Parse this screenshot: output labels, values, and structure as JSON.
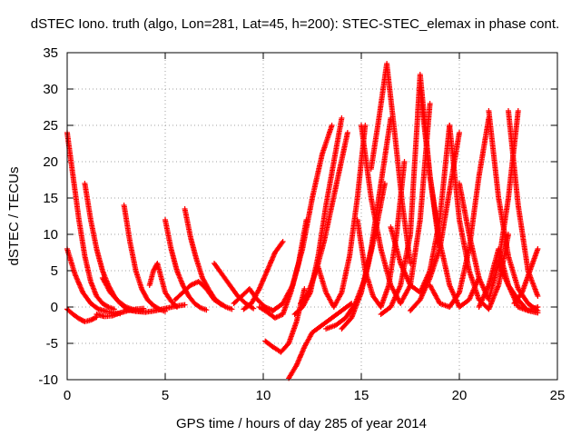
{
  "chart_data": {
    "type": "scatter",
    "title": "dSTEC Iono. truth (algo, Lon=281, Lat=45, h=200): STEC-STEC_elemax in phase cont.",
    "xlabel": "GPS time / hours of day 285 of year 2014",
    "ylabel": "dSTEC  / TECUs",
    "xlim": [
      0,
      25
    ],
    "ylim": [
      -10,
      35
    ],
    "xticks": [
      0,
      5,
      10,
      15,
      20,
      25
    ],
    "yticks": [
      -10,
      -5,
      0,
      5,
      10,
      15,
      20,
      25,
      30,
      35
    ],
    "xtick_labels": [
      "0",
      "5",
      "10",
      "15",
      "20",
      "25"
    ],
    "ytick_labels": [
      "-10",
      "-5",
      "0",
      "5",
      "10",
      "15",
      "20",
      "25",
      "30",
      "35"
    ],
    "grid": true,
    "marker": "plus",
    "color": "#ff0000",
    "series": [
      {
        "x": [
          0.0,
          0.3,
          0.6,
          0.9,
          1.2,
          1.5,
          1.8,
          2.1,
          2.4
        ],
        "y": [
          24.0,
          18.0,
          12.0,
          7.0,
          3.5,
          1.5,
          0.5,
          0.0,
          -0.3
        ]
      },
      {
        "x": [
          0.0,
          0.4,
          0.8,
          1.2,
          1.6,
          2.0,
          2.4,
          2.7
        ],
        "y": [
          8.0,
          4.5,
          2.0,
          0.5,
          -0.3,
          -0.6,
          -0.8,
          -0.9
        ]
      },
      {
        "x": [
          0.0,
          0.3,
          0.6,
          0.9,
          1.2,
          1.5
        ],
        "y": [
          -0.3,
          -1.0,
          -1.6,
          -2.0,
          -1.8,
          -1.4
        ]
      },
      {
        "x": [
          0.9,
          1.2,
          1.5,
          1.8,
          2.1,
          2.4,
          2.7,
          3.0,
          3.3
        ],
        "y": [
          17.0,
          12.0,
          8.0,
          5.0,
          3.0,
          1.5,
          0.5,
          -0.2,
          -0.5
        ]
      },
      {
        "x": [
          1.5,
          1.9,
          2.3,
          2.7,
          3.1,
          3.5,
          3.9
        ],
        "y": [
          -1.0,
          -1.3,
          -1.2,
          -0.8,
          -0.5,
          -0.3,
          -0.2
        ]
      },
      {
        "x": [
          2.9,
          3.2,
          3.5,
          3.8,
          4.1,
          4.4,
          4.7,
          5.0
        ],
        "y": [
          14.0,
          9.0,
          5.0,
          2.5,
          1.0,
          0.2,
          -0.3,
          -0.6
        ]
      },
      {
        "x": [
          1.8,
          2.2,
          2.6,
          3.0,
          3.4,
          3.8
        ],
        "y": [
          4.0,
          2.0,
          0.8,
          0.0,
          -0.4,
          -0.6
        ]
      },
      {
        "x": [
          3.0,
          3.5,
          4.0,
          4.5,
          5.0,
          5.5,
          6.0
        ],
        "y": [
          -0.3,
          -0.6,
          -0.7,
          -0.5,
          -0.2,
          0.1,
          0.3
        ]
      },
      {
        "x": [
          4.2,
          4.4,
          4.6,
          4.8,
          5.0,
          5.3,
          5.6
        ],
        "y": [
          3.0,
          5.0,
          6.0,
          4.0,
          2.0,
          0.8,
          0.0
        ]
      },
      {
        "x": [
          5.0,
          5.3,
          5.6,
          5.9,
          6.2,
          6.5,
          6.8,
          7.1
        ],
        "y": [
          12.0,
          8.0,
          5.0,
          3.0,
          1.5,
          0.5,
          -0.1,
          -0.4
        ]
      },
      {
        "x": [
          6.0,
          6.3,
          6.6,
          6.9,
          7.2,
          7.5,
          7.8,
          8.1,
          8.4
        ],
        "y": [
          13.5,
          9.5,
          6.5,
          4.0,
          2.5,
          1.2,
          0.5,
          0.0,
          -0.3
        ]
      },
      {
        "x": [
          5.5,
          5.9,
          6.3,
          6.7,
          7.1,
          7.5,
          7.9
        ],
        "y": [
          1.0,
          2.0,
          3.0,
          3.5,
          2.5,
          1.0,
          0.3
        ]
      },
      {
        "x": [
          7.5,
          7.9,
          8.3,
          8.7,
          9.1,
          9.5
        ],
        "y": [
          6.0,
          4.5,
          3.0,
          1.5,
          0.5,
          -0.2
        ]
      },
      {
        "x": [
          8.5,
          8.9,
          9.3,
          9.7,
          10.1,
          10.5
        ],
        "y": [
          0.5,
          1.5,
          2.5,
          1.0,
          0.0,
          -0.5
        ]
      },
      {
        "x": [
          9.0,
          9.4,
          9.8,
          10.2,
          10.6,
          11.0
        ],
        "y": [
          -0.3,
          0.5,
          2.5,
          5.0,
          7.5,
          9.0
        ]
      },
      {
        "x": [
          9.8,
          10.2,
          10.6,
          11.0,
          11.4,
          11.8,
          12.2
        ],
        "y": [
          0.0,
          -0.7,
          -1.5,
          -1.0,
          2.0,
          6.0,
          12.0
        ]
      },
      {
        "x": [
          10.1,
          10.5,
          10.9,
          11.3,
          11.7,
          12.1
        ],
        "y": [
          -4.7,
          -5.5,
          -6.2,
          -5.0,
          -2.0,
          2.5
        ]
      },
      {
        "x": [
          11.3,
          11.7,
          12.1,
          12.5,
          13.0,
          13.5,
          14.0,
          14.5
        ],
        "y": [
          -9.8,
          -8.0,
          -5.5,
          -3.5,
          -2.5,
          -1.5,
          -0.5,
          0.5
        ]
      },
      {
        "x": [
          10.5,
          11.0,
          11.5,
          12.0,
          12.5,
          13.0,
          13.5
        ],
        "y": [
          -0.5,
          0.5,
          3.0,
          8.0,
          15.0,
          21.0,
          25.0
        ]
      },
      {
        "x": [
          11.6,
          12.0,
          12.4,
          12.8,
          13.2,
          13.6,
          14.0
        ],
        "y": [
          -1.0,
          0.0,
          2.0,
          7.0,
          14.0,
          20.0,
          26.0
        ]
      },
      {
        "x": [
          11.9,
          12.3,
          12.7,
          13.1,
          13.5,
          13.9,
          14.3
        ],
        "y": [
          0.5,
          2.0,
          5.0,
          9.0,
          14.0,
          19.0,
          24.0
        ]
      },
      {
        "x": [
          12.8,
          13.2,
          13.6,
          14.0,
          14.4,
          14.8,
          15.2
        ],
        "y": [
          5.5,
          2.0,
          0.0,
          2.0,
          7.0,
          15.0,
          25.0
        ]
      },
      {
        "x": [
          13.2,
          13.7,
          14.2,
          14.7,
          15.2,
          15.7,
          16.2
        ],
        "y": [
          -3.0,
          -2.5,
          -1.5,
          0.5,
          4.0,
          10.0,
          17.0
        ]
      },
      {
        "x": [
          14.0,
          14.5,
          15.0,
          15.5,
          16.0,
          16.5
        ],
        "y": [
          -3.0,
          -1.5,
          2.0,
          8.0,
          17.0,
          26.0
        ]
      },
      {
        "x": [
          14.8,
          15.2,
          15.6,
          16.0,
          16.4,
          16.8,
          17.2
        ],
        "y": [
          12.0,
          5.0,
          1.5,
          0.0,
          3.0,
          10.0,
          20.0
        ]
      },
      {
        "x": [
          15.0,
          15.5,
          16.0,
          16.5,
          17.0,
          17.5,
          18.0,
          18.5
        ],
        "y": [
          25.0,
          15.0,
          8.0,
          3.0,
          0.5,
          3.0,
          12.0,
          28.0
        ]
      },
      {
        "x": [
          15.5,
          15.9,
          16.3,
          16.7,
          17.1,
          17.5
        ],
        "y": [
          19.0,
          26.0,
          33.5,
          24.0,
          14.0,
          6.0
        ]
      },
      {
        "x": [
          16.0,
          16.5,
          17.0,
          17.5,
          18.0,
          18.5,
          19.0
        ],
        "y": [
          -1.0,
          0.0,
          3.0,
          10.0,
          32.0,
          18.0,
          8.0
        ]
      },
      {
        "x": [
          16.5,
          17.0,
          17.5,
          18.0,
          18.5,
          19.0,
          19.5
        ],
        "y": [
          11.0,
          6.0,
          3.0,
          2.0,
          5.0,
          12.0,
          25.0
        ]
      },
      {
        "x": [
          17.5,
          18.0,
          18.5,
          19.0,
          19.5,
          20.0
        ],
        "y": [
          -0.5,
          1.0,
          4.0,
          8.0,
          16.0,
          24.0
        ]
      },
      {
        "x": [
          18.0,
          18.5,
          19.0,
          19.5,
          20.0,
          20.5,
          21.0
        ],
        "y": [
          30.0,
          18.0,
          9.0,
          3.0,
          0.0,
          1.0,
          4.0
        ]
      },
      {
        "x": [
          18.5,
          19.0,
          19.5,
          20.0,
          20.5,
          21.0,
          21.5
        ],
        "y": [
          3.0,
          0.5,
          0.0,
          2.0,
          8.0,
          18.0,
          26.0
        ]
      },
      {
        "x": [
          19.5,
          20.0,
          20.5,
          21.0,
          21.5,
          22.0,
          22.5
        ],
        "y": [
          25.0,
          12.0,
          5.0,
          1.0,
          -0.3,
          3.0,
          10.0
        ]
      },
      {
        "x": [
          20.0,
          20.5,
          21.0,
          21.5,
          22.0,
          22.5,
          23.0
        ],
        "y": [
          17.0,
          10.0,
          4.0,
          1.0,
          6.0,
          15.0,
          27.0
        ]
      },
      {
        "x": [
          21.0,
          21.5,
          22.0,
          22.5,
          23.0,
          23.5,
          24.0
        ],
        "y": [
          0.0,
          3.0,
          8.0,
          3.0,
          0.0,
          -0.5,
          0.0
        ]
      },
      {
        "x": [
          21.5,
          22.0,
          22.5,
          23.0,
          23.5,
          24.0
        ],
        "y": [
          27.0,
          15.0,
          7.0,
          2.5,
          0.5,
          -0.5
        ]
      },
      {
        "x": [
          22.5,
          23.0,
          23.5,
          24.0
        ],
        "y": [
          27.0,
          14.0,
          5.0,
          1.5
        ]
      },
      {
        "x": [
          22.0,
          22.5,
          23.0,
          23.5,
          24.0
        ],
        "y": [
          6.0,
          3.0,
          1.0,
          -0.5,
          -0.8
        ]
      },
      {
        "x": [
          22.8,
          23.2,
          23.6,
          24.0
        ],
        "y": [
          0.5,
          2.0,
          5.0,
          8.0
        ]
      }
    ]
  }
}
